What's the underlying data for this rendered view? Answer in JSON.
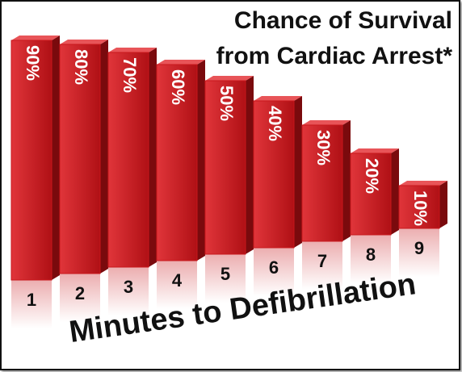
{
  "chart_data": {
    "type": "bar",
    "title": "Chance of Survival from Cardiac Arrest*",
    "x_label": "Minutes to Defibrillation",
    "categories": [
      "1",
      "2",
      "3",
      "4",
      "5",
      "6",
      "7",
      "8",
      "9"
    ],
    "values": [
      90,
      80,
      70,
      60,
      50,
      40,
      30,
      20,
      10
    ],
    "value_labels": [
      "90%",
      "80%",
      "70%",
      "60%",
      "50%",
      "40%",
      "30%",
      "20%",
      "10%"
    ],
    "color": "#c8171c",
    "ylim": [
      0,
      100
    ]
  }
}
